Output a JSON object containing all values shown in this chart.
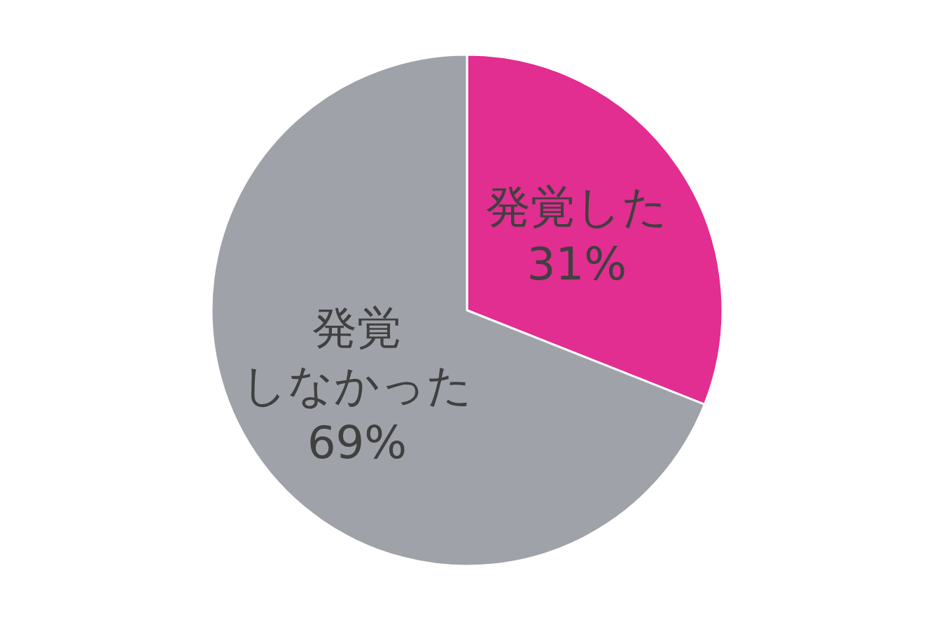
{
  "chart_data": {
    "type": "pie",
    "categories": [
      "発覚した",
      "発覚しなかった"
    ],
    "values": [
      31,
      69
    ],
    "value_labels": [
      "31%",
      "69%"
    ],
    "colors": [
      "#e22d91",
      "#9fa2a8"
    ],
    "legend": false
  }
}
